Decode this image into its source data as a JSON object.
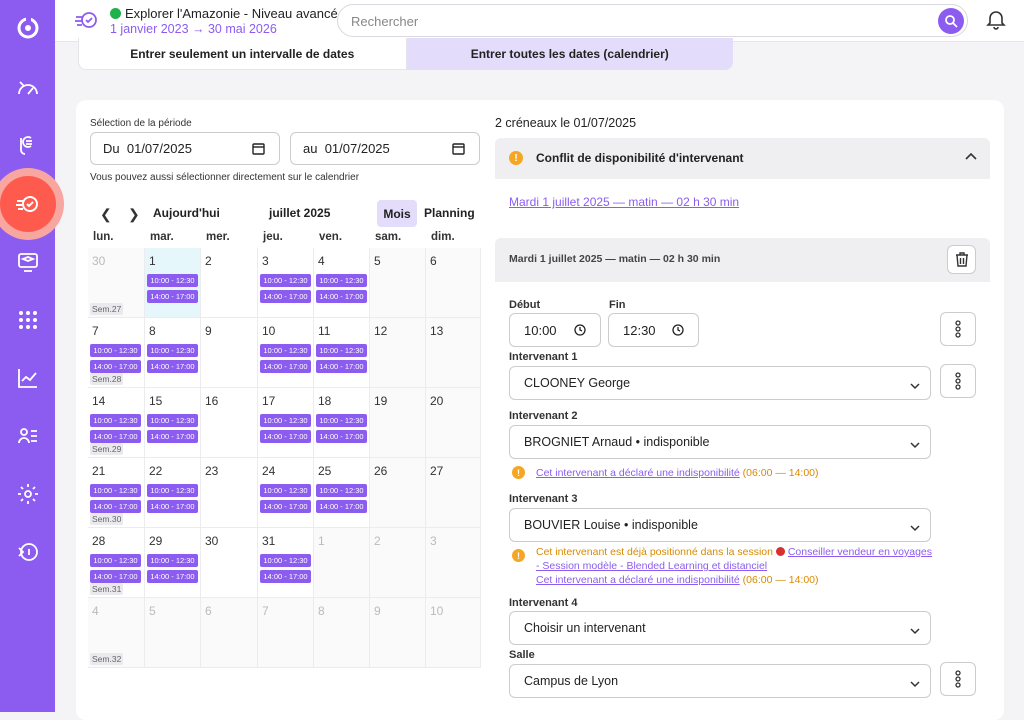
{
  "topbar": {
    "title": "Explorer l'Amazonie - Niveau avancé",
    "dates": "1 janvier 2023 → 30 mai 2026",
    "search_placeholder": "Rechercher"
  },
  "tabs": [
    "Entrer seulement un intervalle de dates",
    "Entrer toutes les dates (calendrier)"
  ],
  "period": {
    "label": "Sélection de la période",
    "from_prefix": "Du",
    "from_value": "01/07/2025",
    "to_prefix": "au",
    "to_value": "01/07/2025",
    "hint": "Vous pouvez aussi sélectionner directement sur le calendrier"
  },
  "calendar": {
    "today_label": "Aujourd'hui",
    "month_label": "juillet 2025",
    "view_month": "Mois",
    "view_planning": "Planning",
    "days": [
      "lun.",
      "mar.",
      "mer.",
      "jeu.",
      "ven.",
      "sam.",
      "dim."
    ],
    "event_morning": "10:00 - 12:30",
    "event_afternoon": "14:00 - 17:00",
    "weeks": [
      "Sem.27",
      "Sem.28",
      "Sem.29",
      "Sem.30",
      "Sem.31",
      "Sem.32"
    ],
    "rows": [
      [
        "30",
        "1",
        "2",
        "3",
        "4",
        "5",
        "6"
      ],
      [
        "7",
        "8",
        "9",
        "10",
        "11",
        "12",
        "13"
      ],
      [
        "14",
        "15",
        "16",
        "17",
        "18",
        "19",
        "20"
      ],
      [
        "21",
        "22",
        "23",
        "24",
        "25",
        "26",
        "27"
      ],
      [
        "28",
        "29",
        "30",
        "31",
        "1",
        "2",
        "3"
      ],
      [
        "4",
        "5",
        "6",
        "7",
        "8",
        "9",
        "10"
      ]
    ]
  },
  "right": {
    "title": "2 créneaux le 01/07/2025",
    "conflict_title": "Conflit de disponibilité d'intervenant",
    "conflict_link": "Mardi 1 juillet 2025 — matin — 02 h 30 min",
    "slot_header": "Mardi 1 juillet 2025  — matin  — 02 h 30 min",
    "start_label": "Début",
    "start_value": "10:00",
    "end_label": "Fin",
    "end_value": "12:30",
    "int1_label": "Intervenant 1",
    "int1_value": "CLOONEY George",
    "int2_label": "Intervenant 2",
    "int2_value": "BROGNIET Arnaud • indisponible",
    "int2_warn_link": "Cet intervenant a déclaré une indisponibilité",
    "int2_warn_time": "(06:00 — 14:00)",
    "int3_label": "Intervenant 3",
    "int3_value": "BOUVIER Louise • indisponible",
    "int3_warn_text": "Cet intervenant est déjà positionné dans la session",
    "int3_warn_session1": "Conseiller vendeur en voyages",
    "int3_warn_session2": "- Session modèle - Blended Learning et distanciel",
    "int3_warn_link2": "Cet intervenant a déclaré une indisponibilité",
    "int3_warn_time2": "(06:00 — 14:00)",
    "int4_label": "Intervenant 4",
    "int4_value": "Choisir un intervenant",
    "room_label": "Salle",
    "room_value": "Campus de Lyon"
  },
  "colors": {
    "accent": "#8c5cf0",
    "active": "#ff5a4e",
    "warning": "#f5a623",
    "online": "#1db24a"
  }
}
